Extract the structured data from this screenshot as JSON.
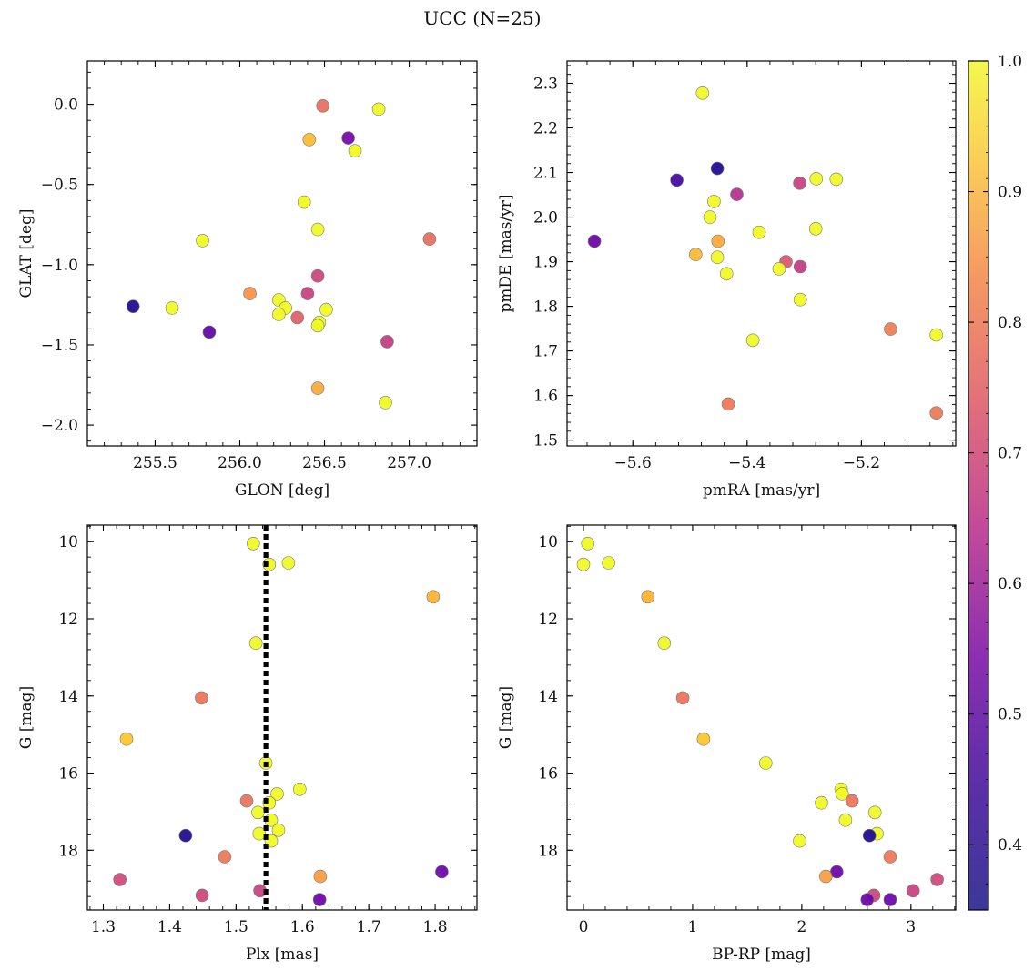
{
  "title": "UCC (N=25)",
  "colorbar": {
    "range": [
      0.35,
      1.0
    ],
    "ticks": [
      0.4,
      0.5,
      0.6,
      0.7,
      0.8,
      0.9,
      1.0
    ],
    "tick_labels": [
      "0.4",
      "0.5",
      "0.6",
      "0.7",
      "0.8",
      "0.9",
      "1.0"
    ],
    "colormap": "plasma"
  },
  "chart_data": [
    {
      "type": "scatter",
      "id": "glon-glat",
      "xlabel": "GLON [deg]",
      "ylabel": "GLAT [deg]",
      "xlim": [
        255.1,
        257.4
      ],
      "ylim": [
        -2.13,
        0.27
      ],
      "y_inverted": false,
      "xticks": [
        255.5,
        256.0,
        256.5,
        257.0
      ],
      "xtick_labels": [
        "255.5",
        "256.0",
        "256.5",
        "257.0"
      ],
      "yticks": [
        -2.0,
        -1.5,
        -1.0,
        -0.5,
        0.0
      ],
      "ytick_labels": [
        "−2.0",
        "−1.5",
        "−1.0",
        "−0.5",
        "0.0"
      ],
      "x": [
        256.49,
        256.82,
        256.41,
        256.64,
        256.68,
        256.38,
        256.46,
        255.78,
        257.12,
        256.46,
        256.06,
        256.4,
        256.23,
        256.27,
        255.37,
        255.6,
        256.51,
        256.23,
        256.34,
        256.47,
        255.82,
        256.46,
        256.87,
        256.46,
        256.86
      ],
      "y": [
        -0.01,
        -0.03,
        -0.22,
        -0.21,
        -0.29,
        -0.61,
        -0.78,
        -0.85,
        -0.84,
        -1.07,
        -1.18,
        -1.18,
        -1.22,
        -1.27,
        -1.26,
        -1.27,
        -1.28,
        -1.31,
        -1.33,
        -1.36,
        -1.42,
        -1.38,
        -1.48,
        -1.77,
        -1.86
      ],
      "c": [
        0.76,
        1.0,
        0.9,
        0.5,
        1.0,
        1.0,
        1.0,
        1.0,
        0.76,
        0.67,
        0.83,
        0.66,
        1.0,
        1.0,
        0.37,
        1.0,
        1.0,
        1.0,
        0.73,
        1.0,
        0.46,
        1.0,
        0.65,
        0.87,
        1.0
      ]
    },
    {
      "type": "scatter",
      "id": "pmra-pmde",
      "xlabel": "pmRA [mas/yr]",
      "ylabel": "pmDE [mas/yr]",
      "xlim": [
        -5.715,
        -5.035
      ],
      "ylim": [
        1.487,
        2.35
      ],
      "y_inverted": false,
      "xticks": [
        -5.6,
        -5.4,
        -5.2
      ],
      "xtick_labels": [
        "−5.6",
        "−5.4",
        "−5.2"
      ],
      "yticks": [
        1.5,
        1.6,
        1.7,
        1.8,
        1.9,
        2.0,
        2.1,
        2.2,
        2.3
      ],
      "ytick_labels": [
        "1.5",
        "1.6",
        "1.7",
        "1.8",
        "1.9",
        "2.0",
        "2.1",
        "2.2",
        "2.3"
      ],
      "x": [
        -5.478,
        -5.452,
        -5.523,
        -5.279,
        -5.244,
        -5.308,
        -5.418,
        -5.458,
        -5.465,
        -5.28,
        -5.379,
        -5.667,
        -5.451,
        -5.49,
        -5.452,
        -5.332,
        -5.307,
        -5.344,
        -5.436,
        -5.307,
        -5.149,
        -5.39,
        -5.069,
        -5.433,
        -5.069
      ],
      "y": [
        2.278,
        2.109,
        2.083,
        2.086,
        2.085,
        2.076,
        2.051,
        2.035,
        2.0,
        1.974,
        1.966,
        1.946,
        1.946,
        1.916,
        1.91,
        1.9,
        1.889,
        1.884,
        1.873,
        1.815,
        1.749,
        1.724,
        1.736,
        1.581,
        1.561
      ],
      "c": [
        1.0,
        0.37,
        0.42,
        1.0,
        1.0,
        0.66,
        0.62,
        1.0,
        1.0,
        1.0,
        1.0,
        0.48,
        0.87,
        0.9,
        1.0,
        0.71,
        0.65,
        1.0,
        1.0,
        1.0,
        0.79,
        1.0,
        1.0,
        0.78,
        0.78
      ]
    },
    {
      "type": "scatter",
      "id": "plx-g",
      "xlabel": "Plx [mas]",
      "ylabel": "G [mag]",
      "xlim": [
        1.276,
        1.863
      ],
      "ylim": [
        19.55,
        9.57
      ],
      "y_inverted": true,
      "xticks": [
        1.3,
        1.4,
        1.5,
        1.6,
        1.7,
        1.8
      ],
      "xtick_labels": [
        "1.3",
        "1.4",
        "1.5",
        "1.6",
        "1.7",
        "1.8"
      ],
      "yticks": [
        10,
        12,
        14,
        16,
        18
      ],
      "ytick_labels": [
        "10",
        "12",
        "14",
        "16",
        "18"
      ],
      "vline": 1.545,
      "x": [
        1.526,
        1.55,
        1.579,
        1.797,
        1.53,
        1.448,
        1.335,
        1.545,
        1.596,
        1.562,
        1.516,
        1.55,
        1.533,
        1.553,
        1.564,
        1.535,
        1.424,
        1.553,
        1.483,
        1.81,
        1.325,
        1.627,
        1.449,
        1.536,
        1.626
      ],
      "y": [
        10.05,
        10.59,
        10.55,
        11.43,
        12.63,
        14.05,
        15.12,
        15.74,
        16.42,
        16.54,
        16.72,
        16.77,
        17.02,
        17.22,
        17.48,
        17.57,
        17.62,
        17.76,
        18.17,
        18.56,
        18.76,
        18.68,
        19.17,
        19.05,
        19.28
      ],
      "c": [
        1.0,
        1.0,
        1.0,
        0.89,
        1.0,
        0.77,
        0.92,
        1.0,
        1.0,
        1.0,
        0.77,
        1.0,
        1.0,
        1.0,
        1.0,
        1.0,
        0.37,
        1.0,
        0.78,
        0.48,
        0.68,
        0.85,
        0.67,
        0.66,
        0.48
      ]
    },
    {
      "type": "scatter",
      "id": "bprp-g",
      "xlabel": "BP-RP [mag]",
      "ylabel": "G [mag]",
      "xlim": [
        -0.15,
        3.41
      ],
      "ylim": [
        19.55,
        9.57
      ],
      "y_inverted": true,
      "xticks": [
        0,
        1,
        2,
        3
      ],
      "xtick_labels": [
        "0",
        "1",
        "2",
        "3"
      ],
      "yticks": [
        10,
        12,
        14,
        16,
        18
      ],
      "ytick_labels": [
        "10",
        "12",
        "14",
        "16",
        "18"
      ],
      "x": [
        0.04,
        0.0,
        0.23,
        0.59,
        0.74,
        0.91,
        1.1,
        1.67,
        2.36,
        2.37,
        2.46,
        2.18,
        2.67,
        2.4,
        2.69,
        2.62,
        1.98,
        2.81,
        2.32,
        2.22,
        3.24,
        3.02,
        2.66,
        2.81,
        2.6
      ],
      "y": [
        10.05,
        10.59,
        10.55,
        11.43,
        12.63,
        14.05,
        15.12,
        15.74,
        16.42,
        16.54,
        16.72,
        16.77,
        17.02,
        17.22,
        17.57,
        17.62,
        17.76,
        18.17,
        18.56,
        18.68,
        18.76,
        19.05,
        19.17,
        19.28,
        19.28
      ],
      "c": [
        1.0,
        1.0,
        1.0,
        0.89,
        1.0,
        0.77,
        0.92,
        1.0,
        1.0,
        1.0,
        0.77,
        1.0,
        1.0,
        1.0,
        1.0,
        0.37,
        1.0,
        0.78,
        0.48,
        0.85,
        0.68,
        0.66,
        0.67,
        0.48,
        0.48
      ]
    }
  ]
}
